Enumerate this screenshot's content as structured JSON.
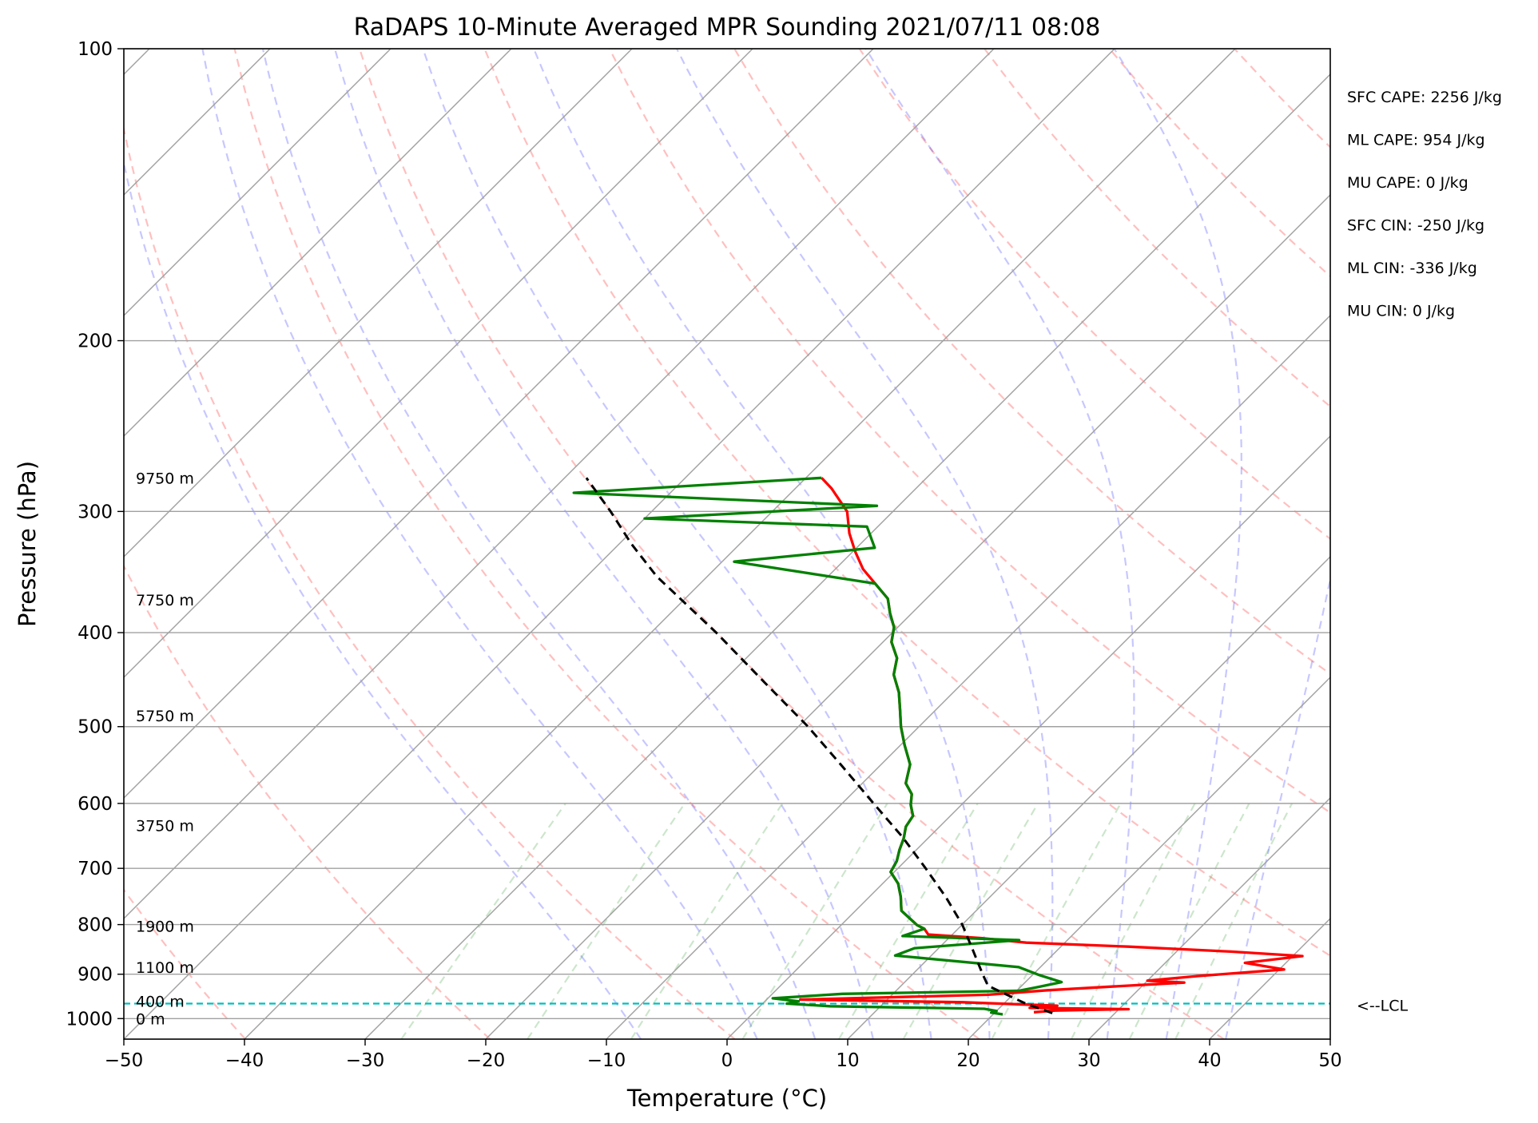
{
  "chart_data": {
    "type": "line",
    "title": "RaDAPS 10-Minute Averaged MPR Sounding 2021/07/11 08:08",
    "xlabel": "Temperature (°C)",
    "ylabel": "Pressure (hPa)",
    "xlim": [
      -50,
      50
    ],
    "ylim": [
      1050,
      100
    ],
    "y_scale": "log",
    "skew": 45,
    "grid": true,
    "x_ticks": [
      -50,
      -40,
      -30,
      -20,
      -10,
      0,
      10,
      20,
      30,
      40,
      50
    ],
    "x_tick_labels": [
      "−50",
      "−40",
      "−30",
      "−20",
      "−10",
      "0",
      "10",
      "20",
      "30",
      "40",
      "50"
    ],
    "y_ticks": [
      100,
      200,
      300,
      400,
      500,
      600,
      700,
      800,
      900,
      1000
    ],
    "y_tick_labels": [
      "100",
      "200",
      "300",
      "400",
      "500",
      "600",
      "700",
      "800",
      "900",
      "1000"
    ],
    "series": [
      {
        "key": "temperature",
        "color": "#ff0000",
        "style": "solid",
        "points": [
          [
            985,
            23.2
          ],
          [
            981,
            24.8
          ],
          [
            978,
            30.8
          ],
          [
            975,
            22.5
          ],
          [
            970,
            24.6
          ],
          [
            962,
            16.5
          ],
          [
            956,
            2.8
          ],
          [
            945,
            18.0
          ],
          [
            935,
            22.5
          ],
          [
            927,
            27.4
          ],
          [
            918,
            33.2
          ],
          [
            914,
            30.0
          ],
          [
            904,
            33.8
          ],
          [
            890,
            40.4
          ],
          [
            876,
            36.6
          ],
          [
            862,
            40.8
          ],
          [
            853,
            34.5
          ],
          [
            843,
            25.6
          ],
          [
            835,
            16.8
          ],
          [
            826,
            12.7
          ],
          [
            819,
            8.0
          ],
          [
            808,
            7.2
          ],
          [
            801,
            6.3
          ],
          [
            774,
            3.8
          ],
          [
            749,
            2.6
          ],
          [
            726,
            1.3
          ],
          [
            706,
            -0.3
          ],
          [
            688,
            -0.7
          ],
          [
            670,
            -1.4
          ],
          [
            652,
            -2.0
          ],
          [
            634,
            -2.8
          ],
          [
            618,
            -3.1
          ],
          [
            602,
            -4.2
          ],
          [
            587,
            -5.0
          ],
          [
            572,
            -6.4
          ],
          [
            547,
            -7.6
          ],
          [
            522,
            -9.7
          ],
          [
            500,
            -11.5
          ],
          [
            480,
            -13.0
          ],
          [
            461,
            -14.5
          ],
          [
            442,
            -16.4
          ],
          [
            425,
            -17.5
          ],
          [
            409,
            -19.3
          ],
          [
            395,
            -20.3
          ],
          [
            382,
            -21.8
          ],
          [
            369,
            -23.2
          ],
          [
            356,
            -25.5
          ],
          [
            344,
            -27.7
          ],
          [
            330,
            -29.8
          ],
          [
            316,
            -31.8
          ],
          [
            300,
            -33.8
          ],
          [
            284,
            -37.0
          ],
          [
            277,
            -38.7
          ]
        ]
      },
      {
        "key": "dewpoint",
        "color": "#008000",
        "style": "solid",
        "points": [
          [
            990,
            20.8
          ],
          [
            986,
            19.7
          ],
          [
            982,
            20.0
          ],
          [
            977,
            18.8
          ],
          [
            971,
            5.8
          ],
          [
            965,
            2.0
          ],
          [
            960,
            2.8
          ],
          [
            953,
            0.4
          ],
          [
            943,
            5.8
          ],
          [
            936,
            20.2
          ],
          [
            929,
            21.3
          ],
          [
            917,
            23.0
          ],
          [
            902,
            20.6
          ],
          [
            885,
            18.2
          ],
          [
            861,
            7.0
          ],
          [
            846,
            8.0
          ],
          [
            830,
            16.0
          ],
          [
            822,
            6.0
          ],
          [
            808,
            7.2
          ],
          [
            801,
            6.3
          ],
          [
            774,
            3.8
          ],
          [
            749,
            2.6
          ],
          [
            726,
            1.3
          ],
          [
            706,
            -0.3
          ],
          [
            688,
            -0.7
          ],
          [
            670,
            -1.4
          ],
          [
            652,
            -2.0
          ],
          [
            634,
            -2.8
          ],
          [
            618,
            -3.1
          ],
          [
            602,
            -4.2
          ],
          [
            587,
            -5.0
          ],
          [
            572,
            -6.4
          ],
          [
            547,
            -7.6
          ],
          [
            522,
            -9.7
          ],
          [
            500,
            -11.5
          ],
          [
            480,
            -13.0
          ],
          [
            461,
            -14.5
          ],
          [
            442,
            -16.4
          ],
          [
            425,
            -17.5
          ],
          [
            409,
            -19.3
          ],
          [
            395,
            -20.3
          ],
          [
            382,
            -21.8
          ],
          [
            369,
            -23.2
          ],
          [
            356,
            -25.5
          ],
          [
            338,
            -39.0
          ],
          [
            327,
            -28.5
          ],
          [
            311,
            -30.9
          ],
          [
            305,
            -50.0
          ],
          [
            296,
            -31.8
          ],
          [
            287,
            -58.0
          ],
          [
            277,
            -38.7
          ]
        ]
      },
      {
        "key": "parcel",
        "color": "#000000",
        "style": "dashed",
        "points": [
          [
            987,
            24.8
          ],
          [
            965,
            21.8
          ],
          [
            925,
            17.2
          ],
          [
            900,
            15.8
          ],
          [
            850,
            13.0
          ],
          [
            800,
            10.0
          ],
          [
            750,
            6.4
          ],
          [
            700,
            2.3
          ],
          [
            650,
            -2.2
          ],
          [
            600,
            -7.4
          ],
          [
            550,
            -13.0
          ],
          [
            500,
            -19.2
          ],
          [
            450,
            -26.5
          ],
          [
            400,
            -34.6
          ],
          [
            350,
            -44.2
          ],
          [
            324,
            -49.0
          ],
          [
            300,
            -53.4
          ],
          [
            277,
            -58.2
          ]
        ]
      }
    ],
    "lcl": {
      "pressure": 965,
      "label": "<--LCL",
      "color": "#00bfbf"
    },
    "height_labels": [
      {
        "text": "9750 m",
        "pressure": 277
      },
      {
        "text": "7750 m",
        "pressure": 370
      },
      {
        "text": "5750 m",
        "pressure": 487
      },
      {
        "text": "3750 m",
        "pressure": 632
      },
      {
        "text": "1900 m",
        "pressure": 803
      },
      {
        "text": "1100 m",
        "pressure": 885
      },
      {
        "text": "400 m",
        "pressure": 960
      },
      {
        "text": "0 m",
        "pressure": 1000
      }
    ],
    "stats": [
      "SFC CAPE: 2256 J/kg",
      "ML CAPE: 954 J/kg",
      "MU CAPE: 0 J/kg",
      "SFC CIN: -250 J/kg",
      "ML CIN: -336 J/kg",
      "MU CIN: 0 J/kg"
    ],
    "background_lines": {
      "dry_adiabats_theta_K": [
        190,
        210,
        230,
        250,
        270,
        290,
        310,
        330,
        350,
        370,
        390,
        410,
        430,
        450,
        470
      ],
      "moist_adiabats_start_C": [
        -10,
        0,
        5,
        10,
        15,
        20,
        25,
        30,
        35,
        40
      ],
      "mixing_ratio_g_kg": [
        0.4,
        1,
        2,
        4,
        7,
        10,
        16,
        24,
        32,
        40
      ],
      "dry_adiabat_color": "#ff0000",
      "moist_adiabat_color": "#0000ff",
      "mixing_ratio_color": "#008000"
    }
  }
}
